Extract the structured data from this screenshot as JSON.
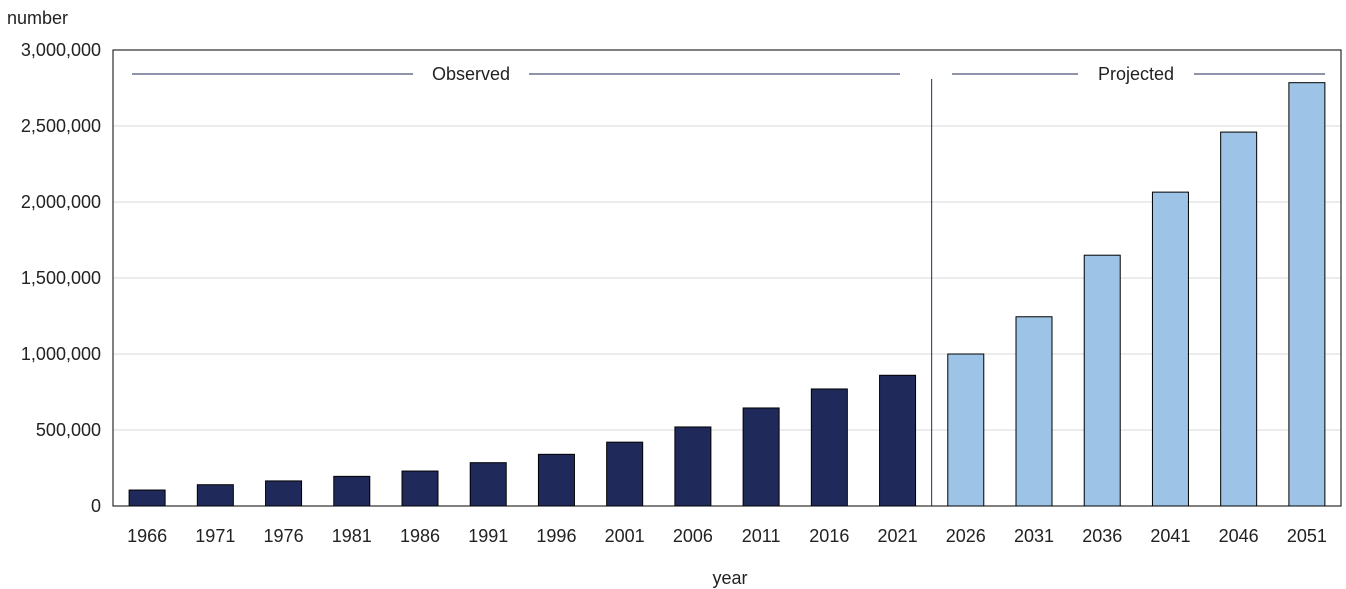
{
  "chart_data": {
    "type": "bar",
    "xlabel": "year",
    "ylabel": "number",
    "ylim": [
      0,
      3000000
    ],
    "yticks": [
      "0",
      "500,000",
      "1,000,000",
      "1,500,000",
      "2,000,000",
      "2,500,000",
      "3,000,000"
    ],
    "grid": true,
    "categories": [
      "1966",
      "1971",
      "1976",
      "1981",
      "1986",
      "1991",
      "1996",
      "2001",
      "2006",
      "2011",
      "2016",
      "2021",
      "2026",
      "2031",
      "2036",
      "2041",
      "2046",
      "2051"
    ],
    "values": [
      105000,
      140000,
      165000,
      195000,
      230000,
      285000,
      340000,
      420000,
      520000,
      645000,
      770000,
      860000,
      1000000,
      1245000,
      1650000,
      2065000,
      2460000,
      2785000
    ],
    "regions": [
      {
        "label": "Observed",
        "categories_from": "1966",
        "categories_to": "2021",
        "color": "#1f2a5a"
      },
      {
        "label": "Projected",
        "categories_from": "2026",
        "categories_to": "2051",
        "color": "#9dc3e6"
      }
    ],
    "colors": {
      "observed": "#1f2a5a",
      "projected": "#9dc3e6",
      "grid": "#d9d9d9",
      "axis": "#000000",
      "separator": "#1f2a5a"
    }
  }
}
